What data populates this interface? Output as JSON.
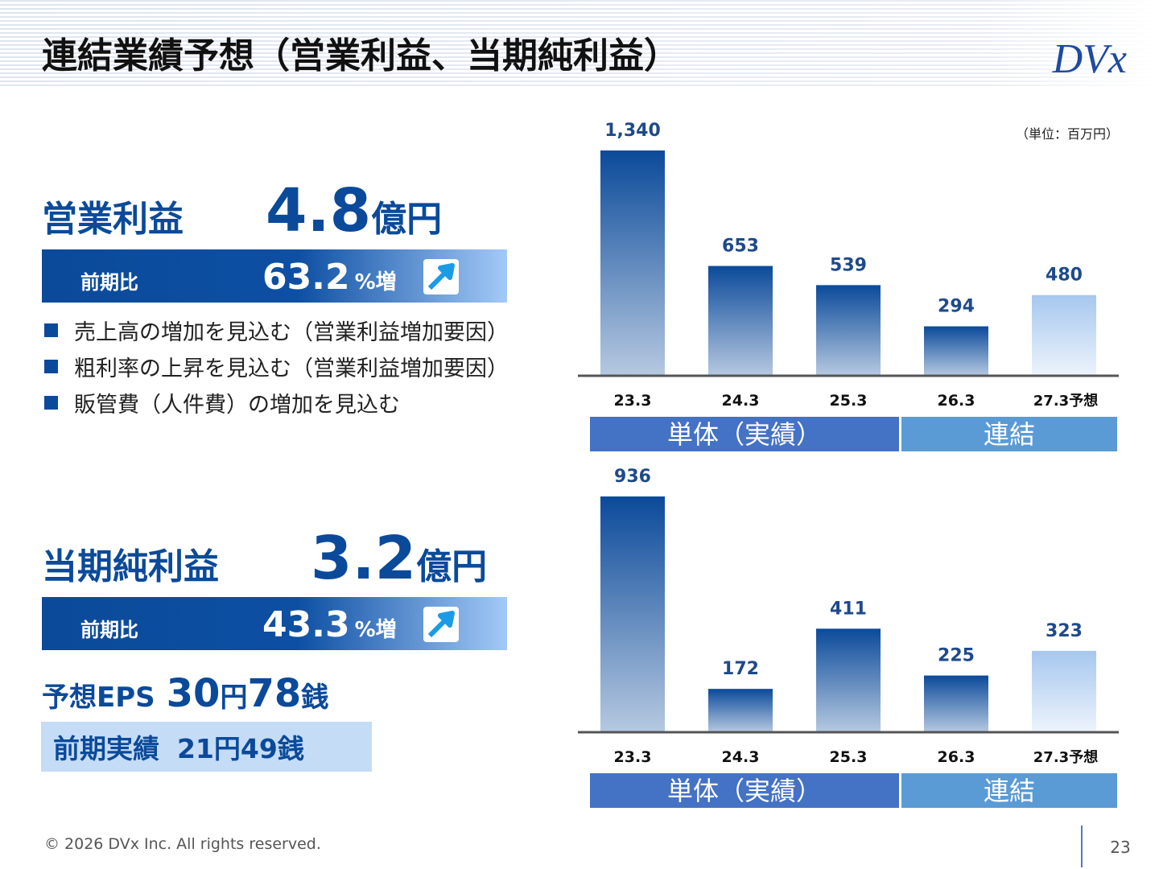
{
  "header": {
    "title": "連結業績予想（営業利益、当期純利益）",
    "logo": "DVx"
  },
  "operating_profit": {
    "label": "営業利益",
    "value": "4.8",
    "unit": "億円",
    "yoy_label": "前期比",
    "yoy_value": "63.2",
    "yoy_unit": "%増"
  },
  "bullets": [
    "売上高の増加を見込む（営業利益増加要因）",
    "粗利率の上昇を見込む（営業利益増加要因）",
    "販管費（人件費）の増加を見込む"
  ],
  "net_income": {
    "label": "当期純利益",
    "value": "3.2",
    "unit": "億円",
    "yoy_label": "前期比",
    "yoy_value": "43.3",
    "yoy_unit": "%増"
  },
  "eps": {
    "label": "予想EPS",
    "yen": "30",
    "yen_unit": "円",
    "sen": "78",
    "sen_unit": "銭"
  },
  "prior_eps": {
    "label": "前期実績",
    "text": "21円49銭"
  },
  "chart_data": [
    {
      "type": "bar",
      "unit_note": "（単位：百万円）",
      "categories": [
        "23.3",
        "24.3",
        "25.3",
        "26.3",
        "27.3予想"
      ],
      "values": [
        1340,
        653,
        539,
        294,
        480
      ],
      "value_labels": [
        "1,340",
        "653",
        "539",
        "294",
        "480"
      ],
      "color": "#0b4a9a",
      "forecast_color": "#a6c7ef",
      "groups": [
        {
          "label": "単体（実績）",
          "color": "#4472c4"
        },
        {
          "label": "連結",
          "color": "#5b9bd5"
        }
      ]
    },
    {
      "type": "bar",
      "categories": [
        "23.3",
        "24.3",
        "25.3",
        "26.3",
        "27.3予想"
      ],
      "values": [
        936,
        172,
        411,
        225,
        323
      ],
      "value_labels": [
        "936",
        "172",
        "411",
        "225",
        "323"
      ],
      "color": "#0b4a9a",
      "forecast_color": "#a6c7ef",
      "groups": [
        {
          "label": "単体（実績）",
          "color": "#4472c4"
        },
        {
          "label": "連結",
          "color": "#5b9bd5"
        }
      ]
    }
  ],
  "footer": {
    "copyright": "© 2026 DVx Inc. All rights reserved.",
    "page": "23"
  }
}
